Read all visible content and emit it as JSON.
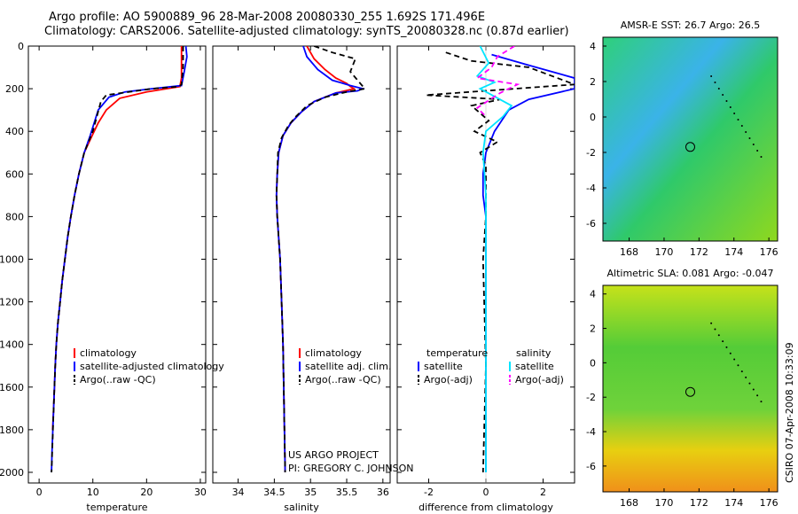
{
  "title": {
    "line1": "Argo profile: AO 5900889_96 28-Mar-2008 20080330_255 1.692S 171.496E",
    "line2": "Climatology: CARS2006. Satellite-adjusted climatology: synTS_20080328.nc (0.87d earlier)"
  },
  "credits": {
    "project": "US ARGO PROJECT",
    "pi": "PI: GREGORY C. JOHNSON"
  },
  "side_stamp": "CSIRO 07-Apr-2008 10:33:09",
  "colors": {
    "climatology": "#ff0000",
    "satellite": "#0000ff",
    "argo": "#000000",
    "satellite_diff_s": "#00e5ff",
    "argo_adj_s": "#ff00ff"
  },
  "chart_data": [
    {
      "id": "temperature",
      "type": "line",
      "xlabel": "temperature",
      "xlim": [
        -2,
        31
      ],
      "ylim": [
        2050,
        0
      ],
      "xticks": [
        0,
        10,
        20,
        30
      ],
      "yticks": [
        0,
        200,
        400,
        600,
        800,
        1000,
        1200,
        1400,
        1600,
        1800,
        2000
      ],
      "legend": [
        "climatology",
        "satellite-adjusted climatology",
        "Argo(..raw -QC)"
      ],
      "series": [
        {
          "name": "climatology",
          "style": "solid",
          "x": [
            26.5,
            26.5,
            26.2,
            20,
            15,
            12.5,
            11,
            9.5,
            8.4,
            7.4,
            6.6,
            5.9,
            5.3,
            4.8,
            4.3,
            3.9,
            3.5,
            3.2,
            3.0,
            2.7,
            2.5
          ],
          "y": [
            0,
            150,
            190,
            215,
            245,
            300,
            360,
            440,
            500,
            600,
            700,
            800,
            900,
            1000,
            1100,
            1200,
            1300,
            1400,
            1500,
            1700,
            1800
          ]
        },
        {
          "name": "satellite",
          "style": "solid",
          "x": [
            27.3,
            27.5,
            27.0,
            26.5,
            21,
            16,
            13,
            11,
            9.5,
            8.4,
            7.4,
            6.6,
            5.9,
            5.3,
            4.8,
            4.3,
            3.9,
            3.5,
            3.2,
            3.0,
            2.7,
            2.4,
            2.3
          ],
          "y": [
            0,
            50,
            120,
            185,
            200,
            215,
            240,
            300,
            420,
            500,
            600,
            700,
            800,
            900,
            1000,
            1100,
            1200,
            1300,
            1400,
            1500,
            1700,
            1900,
            2000
          ]
        },
        {
          "name": "argo",
          "style": "dashed",
          "x": [
            26.8,
            26.8,
            26.5,
            26.0,
            21,
            12.5,
            11.5,
            10,
            8.4,
            7.4,
            6.6,
            5.9,
            5.3,
            4.8,
            4.3,
            3.9,
            3.5,
            3.2,
            3.0,
            2.7,
            2.5,
            2.3
          ],
          "y": [
            0,
            100,
            180,
            190,
            200,
            230,
            260,
            400,
            500,
            600,
            700,
            800,
            900,
            1000,
            1100,
            1200,
            1300,
            1400,
            1500,
            1700,
            1850,
            2000
          ]
        }
      ]
    },
    {
      "id": "salinity",
      "type": "line",
      "xlabel": "salinity",
      "xlim": [
        33.65,
        36.1
      ],
      "ylim": [
        2050,
        0
      ],
      "xticks": [
        34,
        34.5,
        35,
        35.5,
        36
      ],
      "legend": [
        "climatology",
        "satellite adj. clim.",
        "Argo(..raw -QC)"
      ],
      "series": [
        {
          "name": "climatology",
          "style": "solid",
          "x": [
            34.95,
            35.05,
            35.2,
            35.35,
            35.5,
            35.55,
            35.6,
            35.35,
            35.05,
            34.87,
            34.73,
            34.62,
            34.56,
            34.54,
            34.53,
            34.54,
            34.56,
            34.58,
            34.6,
            34.62,
            34.63,
            34.64,
            34.65
          ],
          "y": [
            0,
            60,
            110,
            150,
            175,
            190,
            200,
            220,
            260,
            310,
            360,
            420,
            500,
            600,
            700,
            800,
            900,
            1000,
            1200,
            1400,
            1600,
            1800,
            2000
          ]
        },
        {
          "name": "satellite",
          "style": "solid",
          "x": [
            34.9,
            34.95,
            35.1,
            35.3,
            35.55,
            35.72,
            35.65,
            35.35,
            35.05,
            34.87,
            34.73,
            34.62,
            34.56,
            34.54,
            34.53,
            34.54,
            34.56,
            34.58,
            34.6,
            34.62,
            34.63,
            34.64,
            34.65
          ],
          "y": [
            0,
            50,
            110,
            160,
            185,
            200,
            210,
            220,
            260,
            310,
            360,
            420,
            500,
            600,
            700,
            800,
            900,
            1000,
            1200,
            1400,
            1600,
            1800,
            2000
          ]
        },
        {
          "name": "argo",
          "style": "dashed",
          "x": [
            35.05,
            35.3,
            35.62,
            35.55,
            35.75,
            35.5,
            35.2,
            34.95,
            34.8,
            34.7,
            34.6,
            34.55,
            34.54,
            34.53,
            34.54,
            34.56,
            34.58,
            34.6,
            34.62,
            34.63,
            34.64,
            34.65
          ],
          "y": [
            0,
            30,
            60,
            120,
            200,
            215,
            240,
            280,
            330,
            370,
            430,
            500,
            600,
            700,
            800,
            900,
            1000,
            1200,
            1400,
            1600,
            1800,
            2000
          ]
        }
      ]
    },
    {
      "id": "difference",
      "type": "line",
      "xlabel": "difference from climatology",
      "xlim": [
        -3.1,
        3.1
      ],
      "ylim": [
        2050,
        0
      ],
      "xticks": [
        -2,
        0,
        2
      ],
      "legend_left_title": "temperature",
      "legend_right_title": "salinity",
      "legend_left": [
        "satellite",
        "Argo(-adj)"
      ],
      "legend_right": [
        "satellite",
        "Argo(-adj)"
      ],
      "series": [
        {
          "name": "temperature satellite",
          "style": "solid",
          "x": [
            0.2,
            1.5,
            3.1,
            3.1,
            1.5,
            0.8,
            0.3,
            0.0,
            -0.1,
            -0.1,
            0.0,
            0.0,
            0.0,
            0.0
          ],
          "y": [
            40,
            90,
            150,
            200,
            250,
            300,
            400,
            500,
            600,
            700,
            800,
            1000,
            1500,
            2000
          ]
        },
        {
          "name": "temperature argo",
          "style": "dashed",
          "x": [
            -1.4,
            -0.5,
            1.5,
            3.1,
            -2.1,
            0.5,
            -0.5,
            0.1,
            -0.4,
            0.4,
            -0.2,
            0.0,
            0.0,
            0.0,
            -0.1,
            0.0,
            -0.1
          ],
          "y": [
            30,
            70,
            100,
            180,
            230,
            250,
            280,
            350,
            400,
            450,
            500,
            560,
            700,
            800,
            1000,
            1500,
            2000
          ]
        },
        {
          "name": "salinity satellite",
          "style": "solid",
          "x": [
            -0.2,
            0.1,
            -0.3,
            0.3,
            -0.2,
            0.9,
            0.6,
            0.0,
            -0.1,
            0.0,
            0.0,
            0.0
          ],
          "y": [
            0,
            80,
            140,
            170,
            200,
            280,
            330,
            400,
            500,
            700,
            1000,
            2000
          ]
        },
        {
          "name": "salinity argo",
          "style": "dashed",
          "x": [
            1.0,
            0.4,
            0.2,
            -0.3,
            1.1,
            0.5,
            -0.3,
            0.0
          ],
          "y": [
            0,
            50,
            100,
            150,
            180,
            220,
            290,
            330
          ]
        }
      ]
    },
    {
      "id": "sst-map",
      "type": "heatmap",
      "title": "AMSR-E SST: 26.7 Argo: 26.5",
      "xlim": [
        166.5,
        176.5
      ],
      "ylim": [
        -7,
        4.5
      ],
      "xticks": [
        168,
        170,
        172,
        174,
        176
      ],
      "yticks": [
        4,
        2,
        0,
        -2,
        -4,
        -6
      ],
      "marker": {
        "x": 171.5,
        "y": -1.69
      }
    },
    {
      "id": "sla-map",
      "type": "heatmap",
      "title": "Altimetric SLA: 0.081 Argo: -0.047",
      "xlim": [
        166.5,
        176.5
      ],
      "ylim": [
        -7.5,
        4.5
      ],
      "xticks": [
        168,
        170,
        172,
        174,
        176
      ],
      "yticks": [
        4,
        2,
        0,
        -2,
        -4,
        -6
      ],
      "marker": {
        "x": 171.5,
        "y": -1.69
      }
    }
  ]
}
